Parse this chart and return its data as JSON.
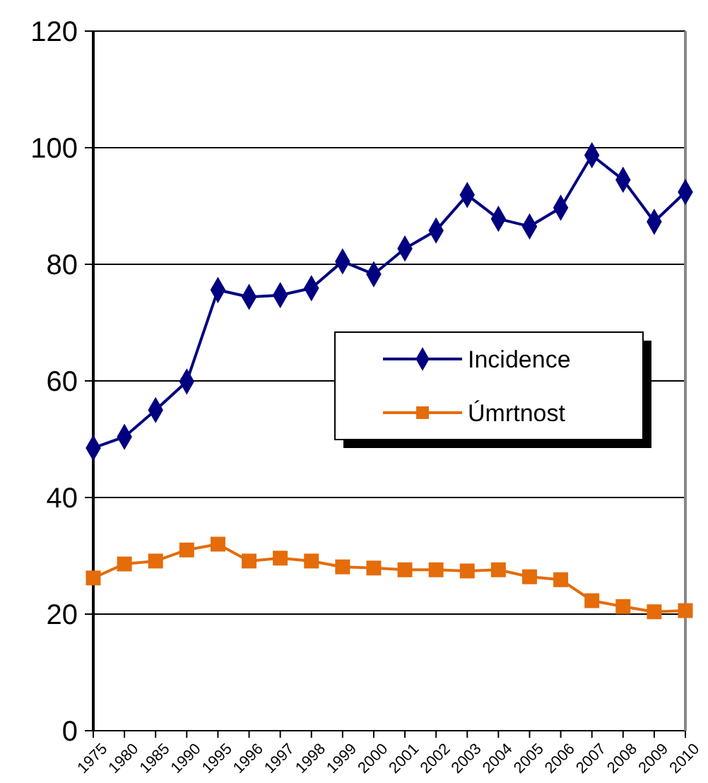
{
  "chart_data": {
    "type": "line",
    "categories": [
      "1975",
      "1980",
      "1985",
      "1990",
      "1995",
      "1996",
      "1997",
      "1998",
      "1999",
      "2000",
      "2001",
      "2002",
      "2003",
      "2004",
      "2005",
      "2006",
      "2007",
      "2008",
      "2009",
      "2010"
    ],
    "series": [
      {
        "name": "Incidence",
        "color": "#000080",
        "marker": "diamond",
        "values": [
          48.5,
          50.4,
          55,
          59.9,
          75.6,
          74.4,
          74.7,
          75.9,
          80.5,
          78.3,
          82.7,
          85.8,
          91.9,
          87.8,
          86.5,
          89.7,
          98.7,
          94.5,
          87.3,
          92.4
        ]
      },
      {
        "name": "Úmrtnost",
        "color": "#e46c0a",
        "marker": "square",
        "values": [
          26.2,
          28.6,
          29.1,
          31,
          32,
          29.1,
          29.6,
          29.1,
          28.1,
          27.9,
          27.6,
          27.6,
          27.4,
          27.6,
          26.4,
          25.9,
          22.3,
          21.3,
          20.4,
          20.6
        ]
      }
    ],
    "ylim": [
      0,
      120
    ],
    "yticks": [
      0,
      20,
      40,
      60,
      80,
      100,
      120
    ],
    "grid": "y",
    "legend": "right"
  }
}
